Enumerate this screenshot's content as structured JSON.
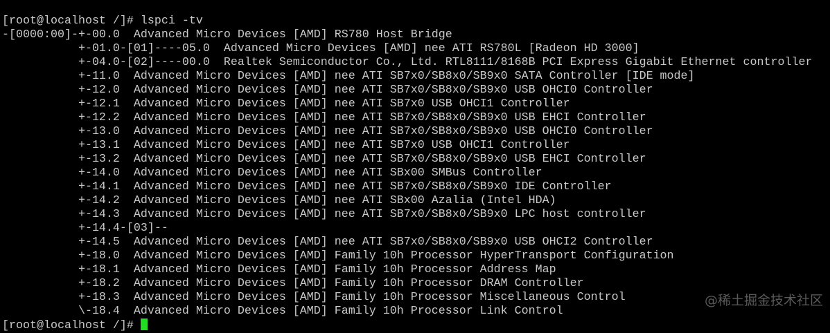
{
  "terminal": {
    "lines": [
      "[root@localhost /]# lspci -tv",
      "-[0000:00]-+-00.0  Advanced Micro Devices [AMD] RS780 Host Bridge",
      "           +-01.0-[01]----05.0  Advanced Micro Devices [AMD] nee ATI RS780L [Radeon HD 3000]",
      "           +-04.0-[02]----00.0  Realtek Semiconductor Co., Ltd. RTL8111/8168B PCI Express Gigabit Ethernet controller",
      "           +-11.0  Advanced Micro Devices [AMD] nee ATI SB7x0/SB8x0/SB9x0 SATA Controller [IDE mode]",
      "           +-12.0  Advanced Micro Devices [AMD] nee ATI SB7x0/SB8x0/SB9x0 USB OHCI0 Controller",
      "           +-12.1  Advanced Micro Devices [AMD] nee ATI SB7x0 USB OHCI1 Controller",
      "           +-12.2  Advanced Micro Devices [AMD] nee ATI SB7x0/SB8x0/SB9x0 USB EHCI Controller",
      "           +-13.0  Advanced Micro Devices [AMD] nee ATI SB7x0/SB8x0/SB9x0 USB OHCI0 Controller",
      "           +-13.1  Advanced Micro Devices [AMD] nee ATI SB7x0 USB OHCI1 Controller",
      "           +-13.2  Advanced Micro Devices [AMD] nee ATI SB7x0/SB8x0/SB9x0 USB EHCI Controller",
      "           +-14.0  Advanced Micro Devices [AMD] nee ATI SBx00 SMBus Controller",
      "           +-14.1  Advanced Micro Devices [AMD] nee ATI SB7x0/SB8x0/SB9x0 IDE Controller",
      "           +-14.2  Advanced Micro Devices [AMD] nee ATI SBx00 Azalia (Intel HDA)",
      "           +-14.3  Advanced Micro Devices [AMD] nee ATI SB7x0/SB8x0/SB9x0 LPC host controller",
      "           +-14.4-[03]--",
      "           +-14.5  Advanced Micro Devices [AMD] nee ATI SB7x0/SB8x0/SB9x0 USB OHCI2 Controller",
      "           +-18.0  Advanced Micro Devices [AMD] Family 10h Processor HyperTransport Configuration",
      "           +-18.1  Advanced Micro Devices [AMD] Family 10h Processor Address Map",
      "           +-18.2  Advanced Micro Devices [AMD] Family 10h Processor DRAM Controller",
      "           +-18.3  Advanced Micro Devices [AMD] Family 10h Processor Miscellaneous Control",
      "           \\-18.4  Advanced Micro Devices [AMD] Family 10h Processor Link Control"
    ],
    "prompt": "[root@localhost /]# ",
    "cursor_color": "#22dd22"
  },
  "watermark": "@稀土掘金技术社区"
}
